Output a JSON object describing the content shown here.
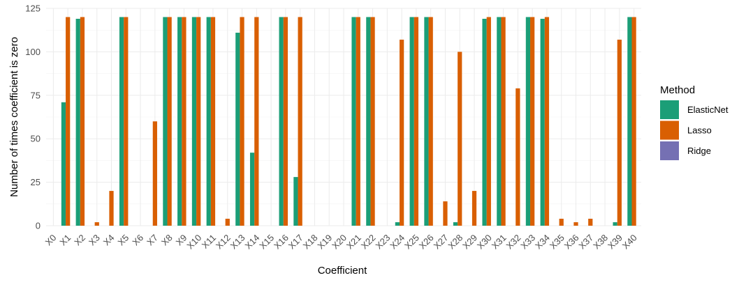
{
  "chart_data": {
    "type": "bar",
    "title": "",
    "xlabel": "Coefficient",
    "ylabel": "Number of times coefficient is zero",
    "ylim": [
      0,
      125
    ],
    "yticks": [
      0,
      25,
      50,
      75,
      100,
      125
    ],
    "grid": true,
    "legend": {
      "title": "Method",
      "placement": "right",
      "entries": [
        "ElasticNet",
        "Lasso",
        "Ridge"
      ]
    },
    "categories": [
      "X0",
      "X1",
      "X2",
      "X3",
      "X4",
      "X5",
      "X6",
      "X7",
      "X8",
      "X9",
      "X10",
      "X11",
      "X12",
      "X13",
      "X14",
      "X15",
      "X16",
      "X17",
      "X18",
      "X19",
      "X20",
      "X21",
      "X22",
      "X23",
      "X24",
      "X25",
      "X26",
      "X27",
      "X28",
      "X29",
      "X30",
      "X31",
      "X32",
      "X33",
      "X34",
      "X35",
      "X36",
      "X37",
      "X38",
      "X39",
      "X40"
    ],
    "series": [
      {
        "name": "ElasticNet",
        "color": "#1b9e77",
        "values": [
          0,
          71,
          119,
          0,
          0,
          120,
          0,
          0,
          120,
          120,
          120,
          120,
          0,
          111,
          42,
          0,
          120,
          28,
          0,
          0,
          0,
          120,
          120,
          0,
          2,
          120,
          120,
          0,
          2,
          0,
          119,
          120,
          0,
          120,
          119,
          0,
          0,
          0,
          0,
          2,
          120
        ]
      },
      {
        "name": "Lasso",
        "color": "#d95f02",
        "values": [
          0,
          120,
          120,
          2,
          20,
          120,
          0,
          60,
          120,
          120,
          120,
          120,
          4,
          120,
          120,
          0,
          120,
          120,
          0,
          0,
          0,
          120,
          120,
          0,
          107,
          120,
          120,
          14,
          100,
          20,
          120,
          120,
          79,
          120,
          120,
          4,
          2,
          4,
          0,
          107,
          120
        ]
      },
      {
        "name": "Ridge",
        "color": "#7570b3",
        "values": [
          0,
          0,
          0,
          0,
          0,
          0,
          0,
          0,
          0,
          0,
          0,
          0,
          0,
          0,
          0,
          0,
          0,
          0,
          0,
          0,
          0,
          0,
          0,
          0,
          0,
          0,
          0,
          0,
          0,
          0,
          0,
          0,
          0,
          0,
          0,
          0,
          0,
          0,
          0,
          0,
          0
        ]
      }
    ]
  }
}
